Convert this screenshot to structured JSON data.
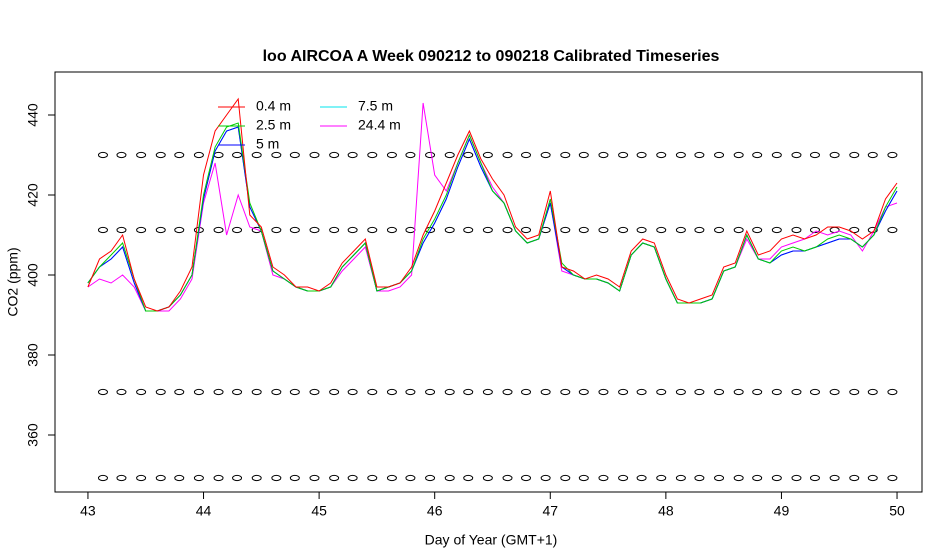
{
  "chart_data": {
    "type": "line",
    "title": "loo AIRCOA A  Week 090212 to 090218  Calibrated Timeseries",
    "x_label": "Day of Year (GMT+1)",
    "y_label": "CO2 (ppm)",
    "xlim": [
      42.715,
      50.216
    ],
    "xticks": [
      43,
      44,
      45,
      46,
      47,
      48,
      49,
      50
    ],
    "ylim": [
      345.75,
      450.75
    ],
    "yticks": [
      360,
      380,
      400,
      420,
      440
    ],
    "legend": "top-left",
    "x": [
      43.0,
      43.1,
      43.2,
      43.3,
      43.4,
      43.5,
      43.6,
      43.7,
      43.8,
      43.9,
      44.0,
      44.1,
      44.2,
      44.3,
      44.4,
      44.5,
      44.6,
      44.7,
      44.8,
      44.9,
      45.0,
      45.1,
      45.2,
      45.3,
      45.4,
      45.5,
      45.6,
      45.7,
      45.8,
      45.9,
      46.0,
      46.1,
      46.2,
      46.3,
      46.4,
      46.5,
      46.6,
      46.7,
      46.8,
      46.9,
      47.0,
      47.1,
      47.2,
      47.3,
      47.4,
      47.5,
      47.6,
      47.7,
      47.8,
      47.9,
      48.0,
      48.1,
      48.2,
      48.3,
      48.4,
      48.5,
      48.6,
      48.7,
      48.8,
      48.9,
      49.0,
      49.1,
      49.2,
      49.3,
      49.4,
      49.5,
      49.6,
      49.7,
      49.8,
      49.9,
      50.0
    ],
    "series": [
      {
        "name": "0.4 m",
        "color": "#ff0000",
        "values": [
          397,
          404,
          406,
          410,
          399,
          392,
          391,
          392,
          396,
          402,
          425,
          436,
          440,
          444,
          415,
          412,
          402,
          400,
          397,
          397,
          396,
          398,
          403,
          406,
          409,
          397,
          397,
          398,
          402,
          410,
          416,
          423,
          430,
          436,
          429,
          424,
          420,
          412,
          409,
          410,
          421,
          402,
          401,
          399,
          400,
          399,
          397,
          406,
          409,
          408,
          400,
          394,
          393,
          394,
          395,
          402,
          403,
          411,
          405,
          406,
          409,
          410,
          409,
          410,
          412,
          412,
          411,
          409,
          411,
          419,
          423
        ]
      },
      {
        "name": "2.5 m",
        "color": "#00cd00",
        "values": [
          398,
          402,
          405,
          408,
          399,
          391,
          391,
          392,
          395,
          400,
          420,
          432,
          437,
          438,
          418,
          411,
          401,
          399,
          397,
          396,
          396,
          397,
          402,
          405,
          408,
          396,
          397,
          398,
          401,
          409,
          414,
          420,
          428,
          435,
          428,
          421,
          418,
          411,
          408,
          409,
          419,
          403,
          400,
          399,
          399,
          398,
          396,
          405,
          408,
          407,
          399,
          393,
          393,
          393,
          394,
          401,
          402,
          410,
          404,
          403,
          406,
          407,
          406,
          407,
          409,
          410,
          409,
          407,
          410,
          417,
          422
        ]
      },
      {
        "name": "5 m",
        "color": "#0000ff",
        "values": [
          398,
          402,
          404,
          407,
          398,
          391,
          391,
          392,
          395,
          400,
          419,
          431,
          436,
          437,
          417,
          411,
          401,
          399,
          397,
          396,
          396,
          397,
          402,
          405,
          408,
          396,
          397,
          398,
          401,
          408,
          413,
          419,
          427,
          434,
          427,
          421,
          418,
          411,
          408,
          409,
          418,
          402,
          400,
          399,
          399,
          398,
          396,
          405,
          408,
          407,
          399,
          393,
          393,
          393,
          394,
          401,
          402,
          410,
          404,
          403,
          405,
          406,
          406,
          407,
          408,
          409,
          409,
          407,
          410,
          416,
          421
        ]
      },
      {
        "name": "7.5 m",
        "color": "#00e5ee",
        "values": [
          398,
          402,
          404,
          407,
          398,
          391,
          391,
          392,
          395,
          400,
          419,
          431,
          436,
          437,
          417,
          411,
          401,
          399,
          397,
          396,
          396,
          397,
          402,
          405,
          408,
          396,
          397,
          398,
          401,
          408,
          413,
          419,
          427,
          434,
          427,
          421,
          418,
          411,
          408,
          409,
          418,
          402,
          400,
          399,
          399,
          398,
          396,
          405,
          408,
          407,
          399,
          393,
          393,
          393,
          394,
          401,
          402,
          410,
          404,
          403,
          405,
          406,
          406,
          407,
          408,
          409,
          409,
          407,
          410,
          416,
          421
        ]
      },
      {
        "name": "24.4 m",
        "color": "#ff00ff",
        "values": [
          397,
          399,
          398,
          400,
          397,
          391,
          391,
          391,
          394,
          399,
          418,
          428,
          410,
          420,
          412,
          411,
          400,
          399,
          397,
          396,
          396,
          397,
          401,
          404,
          407,
          396,
          396,
          397,
          400,
          443,
          425,
          421,
          428,
          435,
          428,
          422,
          418,
          411,
          408,
          409,
          418,
          401,
          400,
          399,
          399,
          398,
          396,
          405,
          408,
          407,
          399,
          393,
          393,
          393,
          394,
          401,
          402,
          409,
          404,
          404,
          407,
          408,
          409,
          411,
          410,
          411,
          410,
          406,
          411,
          417,
          418
        ]
      }
    ],
    "calibration_x": [
      43.13,
      43.29,
      43.46,
      43.63,
      43.79,
      43.96,
      44.13,
      44.29,
      44.46,
      44.63,
      44.79,
      44.96,
      45.13,
      45.29,
      45.46,
      45.63,
      45.79,
      45.96,
      46.13,
      46.29,
      46.46,
      46.63,
      46.79,
      46.96,
      47.13,
      47.29,
      47.46,
      47.63,
      47.79,
      47.96,
      48.13,
      48.29,
      48.46,
      48.63,
      48.79,
      48.96,
      49.13,
      49.29,
      49.46,
      49.63,
      49.79,
      49.96
    ],
    "calibration_levels": [
      430,
      411.25,
      370.75,
      349.25
    ]
  }
}
